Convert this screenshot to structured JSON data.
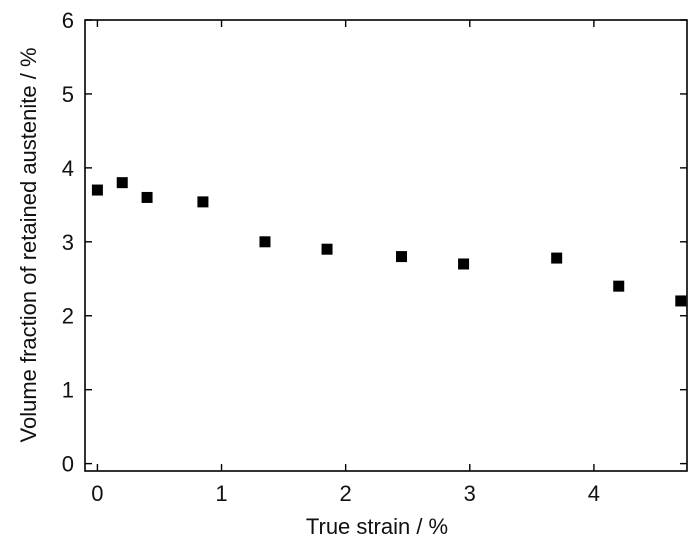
{
  "chart_data": {
    "type": "scatter",
    "xlabel": "True strain / %",
    "ylabel": "Volume fraction of retained austenite / %",
    "xlim": [
      -0.1,
      4.75
    ],
    "ylim": [
      -0.1,
      6
    ],
    "xticks": [
      0,
      1,
      2,
      3,
      4
    ],
    "yticks": [
      0,
      1,
      2,
      3,
      4,
      5,
      6
    ],
    "grid": false,
    "marker": "square",
    "marker_color": "#000000",
    "series": [
      {
        "x": [
          0.0,
          0.2,
          0.4,
          0.85,
          1.35,
          1.85,
          2.45,
          2.95,
          3.7,
          4.2,
          4.7
        ],
        "y": [
          3.7,
          3.8,
          3.6,
          3.54,
          3.0,
          2.9,
          2.8,
          2.7,
          2.78,
          2.4,
          2.2
        ]
      }
    ]
  }
}
